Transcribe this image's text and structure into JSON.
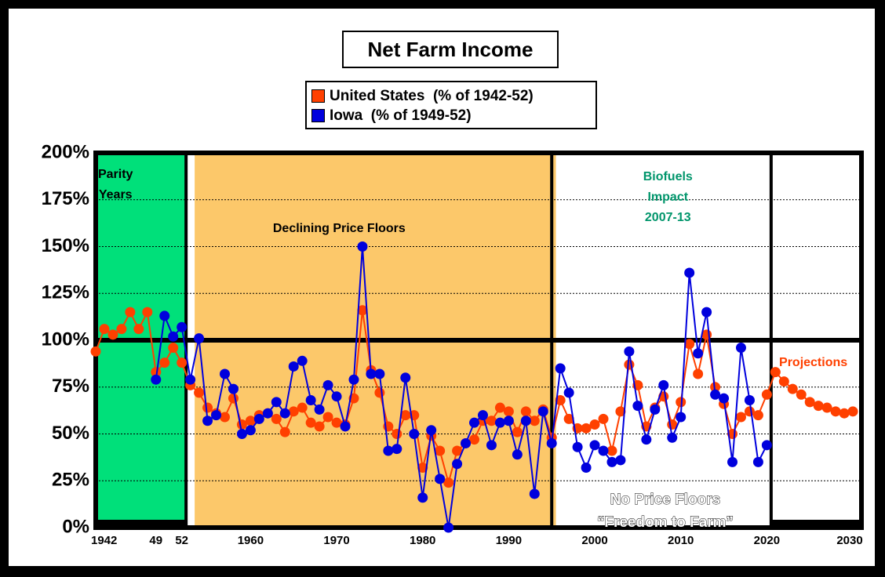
{
  "colors": {
    "background": "#000000",
    "plot_background": "#ffffff",
    "us_series": "#ff4000",
    "iowa_series": "#0000dd",
    "parity_region": "#00e07a",
    "declining_region": "#fcc86a",
    "biofuels_text": "#00956b",
    "projections_text": "#ff4000"
  },
  "chart_data": {
    "type": "line",
    "title": "Net Farm Income",
    "xlabel": "",
    "ylabel": "",
    "xlim": [
      1942,
      2030
    ],
    "ylim": [
      0,
      200
    ],
    "y_ticks": [
      "0%",
      "25%",
      "50%",
      "75%",
      "100%",
      "125%",
      "150%",
      "175%",
      "200%"
    ],
    "x_ticks": [
      "1942",
      "49",
      "52",
      "1960",
      "1970",
      "1980",
      "1990",
      "2000",
      "2010",
      "2020",
      "2030"
    ],
    "grid": true,
    "legend_position": "top-center",
    "reference_line": 100,
    "regions": [
      {
        "label": "Parity Years",
        "start": 1942,
        "end": 1952
      },
      {
        "label": "Declining Price Floors",
        "start": 1953,
        "end": 1995
      },
      {
        "label": "No Price Floors “Freedom to Farm”",
        "start": 1995,
        "end": 2020
      },
      {
        "label": "Projections",
        "start": 2021,
        "end": 2030
      }
    ],
    "annotations": [
      {
        "text": "Parity",
        "line": 1
      },
      {
        "text": "Years",
        "line": 2
      },
      {
        "text": "Declining Price Floors"
      },
      {
        "text": "Biofuels",
        "line": 1
      },
      {
        "text": "Impact",
        "line": 2
      },
      {
        "text": "2007-13",
        "line": 3
      },
      {
        "text": "Projections"
      },
      {
        "text": "No Price Floors",
        "line": 1
      },
      {
        "text": "“Freedom to Farm”",
        "line": 2
      }
    ],
    "series": [
      {
        "name": "United States  (% of 1942-52)",
        "color": "#ff4000",
        "x": [
          1942,
          1943,
          1944,
          1945,
          1946,
          1947,
          1948,
          1949,
          1950,
          1951,
          1952,
          1953,
          1954,
          1955,
          1956,
          1957,
          1958,
          1959,
          1960,
          1961,
          1962,
          1963,
          1964,
          1965,
          1966,
          1967,
          1968,
          1969,
          1970,
          1971,
          1972,
          1973,
          1974,
          1975,
          1976,
          1977,
          1978,
          1979,
          1980,
          1981,
          1982,
          1983,
          1984,
          1985,
          1986,
          1987,
          1988,
          1989,
          1990,
          1991,
          1992,
          1993,
          1994,
          1995,
          1996,
          1997,
          1998,
          1999,
          2000,
          2001,
          2002,
          2003,
          2004,
          2005,
          2006,
          2007,
          2008,
          2009,
          2010,
          2011,
          2012,
          2013,
          2014,
          2015,
          2016,
          2017,
          2018,
          2019,
          2020,
          2021,
          2022,
          2023,
          2024,
          2025,
          2026,
          2027,
          2028,
          2029,
          2030
        ],
        "values": [
          94,
          106,
          103,
          106,
          115,
          106,
          115,
          83,
          88,
          96,
          88,
          76,
          72,
          64,
          61,
          59,
          69,
          55,
          57,
          60,
          61,
          58,
          51,
          62,
          64,
          56,
          54,
          59,
          56,
          55,
          69,
          116,
          84,
          72,
          54,
          50,
          60,
          60,
          32,
          49,
          41,
          24,
          41,
          45,
          47,
          57,
          57,
          64,
          62,
          51,
          62,
          57,
          63,
          48,
          68,
          58,
          53,
          53,
          55,
          58,
          41,
          62,
          87,
          76,
          54,
          64,
          70,
          55,
          67,
          98,
          82,
          103,
          75,
          66,
          50,
          59,
          62,
          60,
          71,
          83,
          78,
          74,
          71,
          67,
          65,
          64,
          62,
          61,
          62
        ]
      },
      {
        "name": "Iowa  (% of 1949-52)",
        "color": "#0000dd",
        "x": [
          1949,
          1950,
          1951,
          1952,
          1953,
          1954,
          1955,
          1956,
          1957,
          1958,
          1959,
          1960,
          1961,
          1962,
          1963,
          1964,
          1965,
          1966,
          1967,
          1968,
          1969,
          1970,
          1971,
          1972,
          1973,
          1974,
          1975,
          1976,
          1977,
          1978,
          1979,
          1980,
          1981,
          1982,
          1983,
          1984,
          1985,
          1986,
          1987,
          1988,
          1989,
          1990,
          1991,
          1992,
          1993,
          1994,
          1995,
          1996,
          1997,
          1998,
          1999,
          2000,
          2001,
          2002,
          2003,
          2004,
          2005,
          2006,
          2007,
          2008,
          2009,
          2010,
          2011,
          2012,
          2013,
          2014,
          2015,
          2016,
          2017,
          2018,
          2019,
          2020
        ],
        "values": [
          79,
          113,
          102,
          107,
          79,
          101,
          57,
          60,
          82,
          74,
          50,
          52,
          58,
          61,
          67,
          61,
          86,
          89,
          68,
          63,
          76,
          70,
          54,
          79,
          150,
          82,
          82,
          41,
          42,
          80,
          50,
          16,
          52,
          26,
          0,
          34,
          45,
          56,
          60,
          44,
          56,
          57,
          39,
          57,
          18,
          62,
          45,
          85,
          72,
          43,
          32,
          44,
          41,
          35,
          36,
          94,
          65,
          47,
          63,
          76,
          48,
          59,
          136,
          93,
          115,
          71,
          69,
          35,
          96,
          68,
          35,
          44
        ]
      }
    ]
  }
}
